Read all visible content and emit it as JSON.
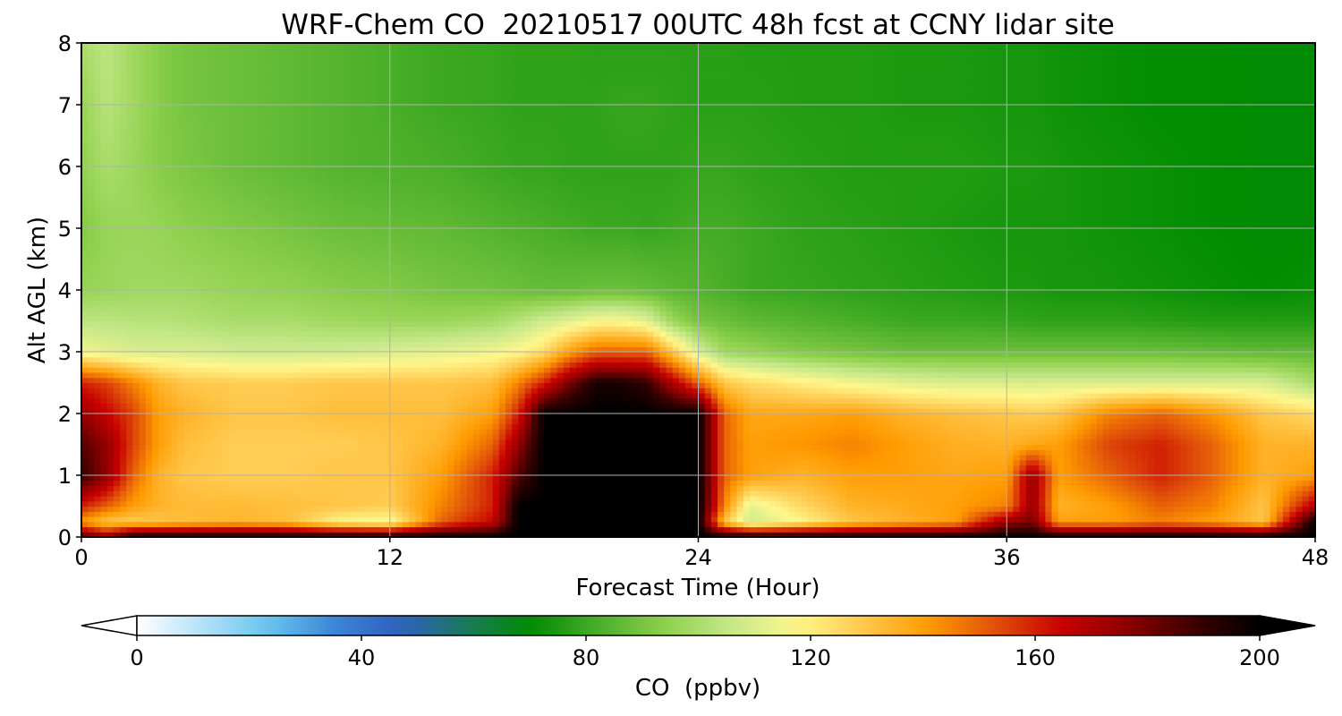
{
  "chart_data": {
    "type": "heatmap",
    "subtype": "filled-contour",
    "title": "WRF-Chem CO  20210517 00UTC 48h fcst at CCNY lidar site",
    "xlabel": "Forecast Time (Hour)",
    "ylabel": "Alt AGL (km)",
    "xlim": [
      0,
      48
    ],
    "ylim": [
      0,
      8
    ],
    "xticks": [
      0,
      12,
      24,
      36,
      48
    ],
    "yticks": [
      0,
      1,
      2,
      3,
      4,
      5,
      6,
      7,
      8
    ],
    "grid": true,
    "x": [
      0,
      1,
      2,
      3,
      4,
      6,
      8,
      10,
      12,
      14,
      16,
      17,
      18,
      19,
      20,
      21,
      22,
      23,
      24,
      25,
      26,
      28,
      30,
      32,
      34,
      36,
      37,
      38,
      40,
      42,
      44,
      46,
      48
    ],
    "y": [
      0,
      0.25,
      0.5,
      1,
      1.5,
      2,
      2.5,
      3,
      3.5,
      4,
      5,
      6,
      7,
      8
    ],
    "z": [
      [
        190,
        175,
        200,
        200,
        200,
        200,
        200,
        200,
        200,
        200,
        200,
        200,
        200,
        200,
        200,
        200,
        200,
        200,
        200,
        200,
        200,
        200,
        200,
        200,
        200,
        200,
        200,
        200,
        200,
        200,
        200,
        200,
        200
      ],
      [
        140,
        130,
        128,
        130,
        132,
        134,
        132,
        118,
        115,
        150,
        165,
        200,
        200,
        200,
        200,
        200,
        200,
        200,
        200,
        130,
        108,
        118,
        130,
        135,
        140,
        175,
        180,
        140,
        140,
        145,
        140,
        130,
        200
      ],
      [
        160,
        150,
        140,
        135,
        133,
        133,
        132,
        130,
        128,
        145,
        160,
        200,
        200,
        200,
        200,
        200,
        200,
        200,
        200,
        145,
        112,
        125,
        135,
        137,
        140,
        145,
        175,
        135,
        140,
        150,
        145,
        130,
        170
      ],
      [
        190,
        175,
        150,
        135,
        130,
        128,
        128,
        130,
        130,
        140,
        160,
        185,
        200,
        200,
        200,
        200,
        200,
        200,
        200,
        150,
        140,
        135,
        140,
        140,
        138,
        140,
        175,
        140,
        150,
        160,
        150,
        135,
        140
      ],
      [
        185,
        175,
        155,
        140,
        132,
        128,
        128,
        128,
        130,
        135,
        150,
        175,
        200,
        200,
        200,
        200,
        200,
        200,
        200,
        150,
        140,
        142,
        145,
        140,
        136,
        135,
        138,
        140,
        155,
        160,
        150,
        135,
        135
      ],
      [
        175,
        165,
        155,
        140,
        135,
        130,
        130,
        132,
        132,
        132,
        140,
        160,
        200,
        200,
        200,
        200,
        200,
        200,
        200,
        150,
        138,
        138,
        140,
        135,
        132,
        130,
        128,
        130,
        145,
        150,
        142,
        130,
        125
      ],
      [
        160,
        155,
        145,
        135,
        130,
        128,
        128,
        130,
        130,
        130,
        132,
        145,
        160,
        180,
        195,
        195,
        190,
        170,
        150,
        130,
        125,
        120,
        115,
        112,
        110,
        110,
        110,
        110,
        110,
        110,
        110,
        110,
        100
      ],
      [
        115,
        112,
        110,
        110,
        110,
        108,
        108,
        108,
        110,
        112,
        115,
        118,
        125,
        140,
        150,
        150,
        150,
        130,
        110,
        98,
        96,
        92,
        90,
        88,
        88,
        88,
        88,
        88,
        88,
        88,
        87,
        86,
        86
      ],
      [
        104,
        104,
        103,
        103,
        102,
        100,
        100,
        98,
        97,
        97,
        99,
        103,
        108,
        112,
        117,
        117,
        112,
        97,
        90,
        88,
        86,
        84,
        82,
        80,
        80,
        79,
        78,
        78,
        78,
        77,
        76,
        76,
        76
      ],
      [
        96,
        97,
        98,
        98,
        98,
        96,
        95,
        93,
        92,
        90,
        89,
        88,
        87,
        87,
        88,
        88,
        87,
        85,
        84,
        82,
        80,
        79,
        78,
        77,
        76,
        75,
        75,
        74,
        74,
        73,
        72,
        71,
        72
      ],
      [
        92,
        96,
        97,
        96,
        94,
        92,
        90,
        88,
        87,
        86,
        84,
        83,
        82,
        81,
        80,
        80,
        79,
        80,
        81,
        81,
        80,
        78,
        77,
        76,
        75,
        74,
        74,
        74,
        73,
        72,
        71,
        70,
        70
      ],
      [
        95,
        100,
        97,
        93,
        91,
        88,
        86,
        84,
        83,
        82,
        80,
        79,
        79,
        78,
        78,
        78,
        78,
        78,
        79,
        79,
        78,
        77,
        76,
        76,
        76,
        75,
        75,
        74,
        73,
        72,
        71,
        70,
        70
      ],
      [
        96,
        103,
        98,
        93,
        90,
        88,
        86,
        84,
        82,
        80,
        79,
        78,
        78,
        78,
        78,
        79,
        79,
        78,
        77,
        77,
        77,
        76,
        76,
        75,
        75,
        74,
        74,
        73,
        72,
        71,
        71,
        70,
        70
      ],
      [
        100,
        104,
        98,
        93,
        90,
        88,
        86,
        84,
        82,
        80,
        79,
        78,
        78,
        78,
        77,
        77,
        77,
        77,
        77,
        77,
        76,
        76,
        76,
        75,
        75,
        74,
        74,
        73,
        72,
        71,
        71,
        70,
        70
      ]
    ],
    "colorbar": {
      "label": "CO  (ppbv)",
      "vmin": 0,
      "vmax": 200,
      "ticks": [
        0,
        40,
        80,
        120,
        160,
        200
      ],
      "extend": "both",
      "colormap": [
        "#ffffff",
        "#b3e1f7",
        "#66c4ef",
        "#3c84d6",
        "#2f5fbf",
        "#1a7a5a",
        "#008c00",
        "#4caf2a",
        "#8ed04c",
        "#c6e88a",
        "#fff78c",
        "#ffc84c",
        "#ff9a00",
        "#e0500a",
        "#c80000",
        "#8c0000",
        "#3c0000",
        "#000000"
      ]
    }
  }
}
